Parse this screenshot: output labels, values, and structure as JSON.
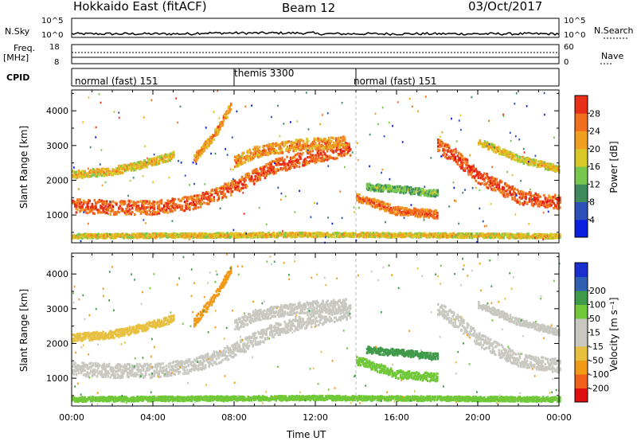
{
  "header": {
    "radar": "Hokkaido East (fitACF)",
    "beam": "Beam 12",
    "date": "03/Oct/2017"
  },
  "top_strips": {
    "nsky_label": "N.Sky",
    "nsearch_label": "N.Search",
    "freq_label_1": "Freq.",
    "freq_label_2": "[MHz]",
    "nave_label": "Nave",
    "cpid_label": "CPID",
    "left_ticks_a": [
      "10^5",
      "10^0"
    ],
    "right_ticks_a": [
      "10^5",
      "10^0"
    ],
    "left_ticks_b": [
      "18",
      "8"
    ],
    "right_ticks_b": [
      "60",
      "0"
    ]
  },
  "cpid_segments": [
    {
      "label": "normal (fast) 151",
      "start_hour": 0
    },
    {
      "label": "themis 3300",
      "start_hour": 8
    },
    {
      "label": "normal (fast) 151",
      "start_hour": 14
    }
  ],
  "x_axis": {
    "label": "Time UT",
    "ticks": [
      "00:00",
      "04:00",
      "08:00",
      "12:00",
      "16:00",
      "20:00",
      "00:00"
    ],
    "range_hours": [
      0,
      24
    ]
  },
  "colors": {
    "power_scale": [
      "#0a1fe0",
      "#2c4fb8",
      "#3f8a5a",
      "#78c850",
      "#d8c828",
      "#f0a020",
      "#f07020",
      "#e83018",
      "#e01010"
    ],
    "velocity_scale": [
      "#e01010",
      "#f06018",
      "#f09a18",
      "#e8c040",
      "#c8c8c0",
      "#c8c8c0",
      "#70c838",
      "#3f9a4a",
      "#2f5fb0",
      "#1a2fd0"
    ],
    "ground_scatter": "#b8b8b0"
  },
  "chart_data": [
    {
      "type": "heatmap",
      "title": "",
      "ylabel": "Slant Range [km]",
      "xlabel": "",
      "y_ticks": [
        1000,
        2000,
        3000,
        4000
      ],
      "ylim": [
        200,
        4600
      ],
      "xlim_hours": [
        0,
        24
      ],
      "colorbar": {
        "label": "Power [dB]",
        "ticks": [
          4,
          8,
          12,
          16,
          20,
          24,
          28
        ],
        "range": [
          0,
          32
        ]
      },
      "bands": [
        {
          "x": [
            0,
            2,
            4,
            6,
            8,
            10,
            12,
            13.7
          ],
          "y": [
            1250,
            1200,
            1200,
            1350,
            1800,
            2400,
            2700,
            2900
          ],
          "width": 250,
          "value": 26
        },
        {
          "x": [
            0,
            2,
            3.5,
            5
          ],
          "y": [
            2150,
            2250,
            2450,
            2700
          ],
          "width": 140,
          "value": 18
        },
        {
          "x": [
            6,
            7,
            7.8
          ],
          "y": [
            2600,
            3300,
            4100
          ],
          "width": 150,
          "value": 22
        },
        {
          "x": [
            8,
            9,
            10,
            11,
            12,
            13.5
          ],
          "y": [
            2500,
            2800,
            2900,
            3000,
            3050,
            3100
          ],
          "width": 200,
          "value": 22
        },
        {
          "x": [
            14,
            16,
            18
          ],
          "y": [
            1500,
            1100,
            1000
          ],
          "width": 150,
          "value": 24
        },
        {
          "x": [
            14.5,
            16.5,
            18
          ],
          "y": [
            1800,
            1700,
            1600
          ],
          "width": 120,
          "value": 12
        },
        {
          "x": [
            18,
            19,
            20,
            21,
            22,
            24
          ],
          "y": [
            3000,
            2600,
            2100,
            1800,
            1500,
            1350
          ],
          "width": 250,
          "value": 27
        },
        {
          "x": [
            20,
            22,
            24
          ],
          "y": [
            3100,
            2600,
            2300
          ],
          "width": 120,
          "value": 18
        },
        {
          "x": [
            0,
            6,
            12,
            18,
            24
          ],
          "y": [
            380,
            400,
            420,
            400,
            380
          ],
          "width": 80,
          "value": 18
        }
      ]
    },
    {
      "type": "heatmap",
      "title": "",
      "ylabel": "Slant Range [km]",
      "xlabel": "Time UT",
      "y_ticks": [
        1000,
        2000,
        3000,
        4000
      ],
      "ylim": [
        200,
        4600
      ],
      "xlim_hours": [
        0,
        24
      ],
      "colorbar": {
        "label": "Velocity [m s⁻¹]",
        "ticks": [
          -200,
          -100,
          -50,
          -15,
          15,
          50,
          100,
          200
        ],
        "tick_labels": [
          "-200",
          "-100",
          "-50",
          "-15",
          "15",
          "50",
          "100",
          "200"
        ]
      },
      "bands": [
        {
          "x": [
            0,
            2,
            4,
            6,
            8,
            10,
            12,
            13.7
          ],
          "y": [
            1250,
            1200,
            1200,
            1350,
            1800,
            2400,
            2700,
            2900
          ],
          "width": 250,
          "value": 0
        },
        {
          "x": [
            0,
            2,
            3.5,
            5
          ],
          "y": [
            2150,
            2250,
            2450,
            2700
          ],
          "width": 140,
          "value": -30
        },
        {
          "x": [
            6,
            7,
            7.8
          ],
          "y": [
            2600,
            3300,
            4100
          ],
          "width": 150,
          "value": -60
        },
        {
          "x": [
            8,
            9,
            10,
            11,
            12,
            13.5
          ],
          "y": [
            2500,
            2800,
            2900,
            3000,
            3050,
            3100
          ],
          "width": 200,
          "value": 0
        },
        {
          "x": [
            14,
            16,
            18
          ],
          "y": [
            1500,
            1100,
            1000
          ],
          "width": 150,
          "value": 40
        },
        {
          "x": [
            14.5,
            16.5,
            18
          ],
          "y": [
            1800,
            1700,
            1600
          ],
          "width": 120,
          "value": 60
        },
        {
          "x": [
            18,
            19,
            20,
            21,
            22,
            24
          ],
          "y": [
            3000,
            2600,
            2100,
            1800,
            1500,
            1350
          ],
          "width": 250,
          "value": 0
        },
        {
          "x": [
            20,
            22,
            24
          ],
          "y": [
            3100,
            2600,
            2300
          ],
          "width": 120,
          "value": 5
        },
        {
          "x": [
            0,
            6,
            12,
            18,
            24
          ],
          "y": [
            380,
            400,
            420,
            400,
            380
          ],
          "width": 80,
          "value": 40
        }
      ]
    }
  ]
}
